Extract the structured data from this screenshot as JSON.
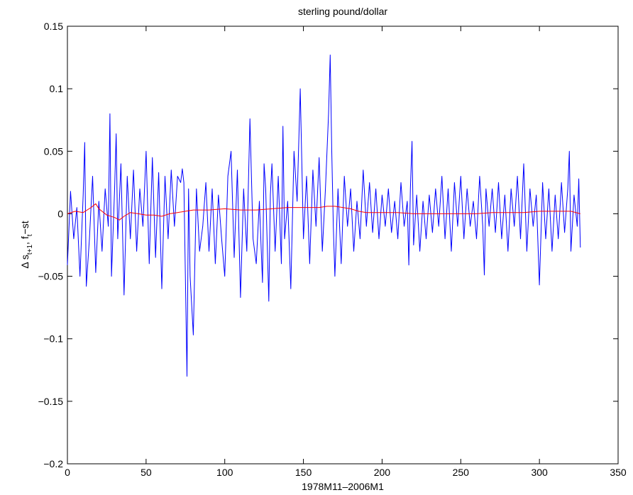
{
  "chart_data": {
    "type": "line",
    "title": "sterling pound/dollar",
    "xlabel": "1978M11–2006M1",
    "ylabel_parts": {
      "delta": "Δ s",
      "sub1": "t+1",
      "mid": ", f",
      "sub2": "t",
      "end": "−st"
    },
    "xlim": [
      0,
      350
    ],
    "ylim": [
      -0.2,
      0.15
    ],
    "x_ticks": [
      0,
      50,
      100,
      150,
      200,
      250,
      300,
      350
    ],
    "x_tick_labels": [
      "0",
      "50",
      "100",
      "150",
      "200",
      "250",
      "300",
      "350"
    ],
    "y_ticks": [
      -0.2,
      -0.15,
      -0.1,
      -0.05,
      0,
      0.05,
      0.1,
      0.15
    ],
    "y_tick_labels": [
      "−0.2",
      "−0.15",
      "−0.1",
      "−0.05",
      "0",
      "0.05",
      "0.1",
      "0.15"
    ],
    "grid": false,
    "series": [
      {
        "color": "#0000ff",
        "points": [
          [
            0,
            -0.041
          ],
          [
            2,
            0.018
          ],
          [
            4,
            -0.02
          ],
          [
            6,
            0.005
          ],
          [
            8,
            -0.05
          ],
          [
            10,
            0.015
          ],
          [
            11,
            0.057
          ],
          [
            12,
            -0.058
          ],
          [
            14,
            -0.02
          ],
          [
            16,
            0.03
          ],
          [
            18,
            -0.047
          ],
          [
            20,
            0.01
          ],
          [
            22,
            -0.03
          ],
          [
            24,
            0.02
          ],
          [
            26,
            -0.01
          ],
          [
            27,
            0.08
          ],
          [
            28,
            -0.05
          ],
          [
            30,
            0.02
          ],
          [
            31,
            0.064
          ],
          [
            32,
            -0.02
          ],
          [
            34,
            0.04
          ],
          [
            36,
            -0.065
          ],
          [
            38,
            0.03
          ],
          [
            40,
            -0.02
          ],
          [
            42,
            0.035
          ],
          [
            44,
            -0.03
          ],
          [
            46,
            0.02
          ],
          [
            48,
            -0.01
          ],
          [
            50,
            0.05
          ],
          [
            52,
            -0.04
          ],
          [
            54,
            0.045
          ],
          [
            56,
            -0.035
          ],
          [
            58,
            0.033
          ],
          [
            60,
            -0.06
          ],
          [
            62,
            0.03
          ],
          [
            64,
            -0.02
          ],
          [
            66,
            0.035
          ],
          [
            68,
            -0.01
          ],
          [
            70,
            0.03
          ],
          [
            72,
            0.025
          ],
          [
            73,
            0.036
          ],
          [
            74,
            0.025
          ],
          [
            76,
            -0.13
          ],
          [
            77,
            0.02
          ],
          [
            78,
            -0.05
          ],
          [
            80,
            -0.097
          ],
          [
            82,
            0.02
          ],
          [
            84,
            -0.03
          ],
          [
            86,
            -0.01
          ],
          [
            88,
            0.025
          ],
          [
            90,
            -0.03
          ],
          [
            92,
            0.02
          ],
          [
            94,
            -0.04
          ],
          [
            96,
            0.015
          ],
          [
            98,
            -0.02
          ],
          [
            100,
            -0.05
          ],
          [
            102,
            0.03
          ],
          [
            104,
            0.05
          ],
          [
            106,
            -0.035
          ],
          [
            108,
            0.035
          ],
          [
            110,
            -0.067
          ],
          [
            112,
            0.02
          ],
          [
            114,
            -0.03
          ],
          [
            116,
            0.076
          ],
          [
            118,
            -0.02
          ],
          [
            120,
            -0.04
          ],
          [
            122,
            0.01
          ],
          [
            124,
            -0.055
          ],
          [
            125,
            0.04
          ],
          [
            126,
            0.02
          ],
          [
            128,
            -0.07
          ],
          [
            129,
            0.015
          ],
          [
            130,
            0.04
          ],
          [
            132,
            -0.03
          ],
          [
            134,
            0.03
          ],
          [
            136,
            -0.04
          ],
          [
            137,
            0.07
          ],
          [
            138,
            -0.02
          ],
          [
            140,
            0.01
          ],
          [
            142,
            -0.06
          ],
          [
            144,
            0.05
          ],
          [
            146,
            0.01
          ],
          [
            148,
            0.1
          ],
          [
            150,
            -0.02
          ],
          [
            152,
            0.03
          ],
          [
            154,
            -0.04
          ],
          [
            156,
            0.035
          ],
          [
            158,
            -0.01
          ],
          [
            160,
            0.045
          ],
          [
            162,
            -0.03
          ],
          [
            164,
            0.02
          ],
          [
            166,
            0.08
          ],
          [
            167,
            0.127
          ],
          [
            168,
            0.05
          ],
          [
            169,
            -0.01
          ],
          [
            170,
            -0.05
          ],
          [
            172,
            0.02
          ],
          [
            174,
            -0.04
          ],
          [
            176,
            0.03
          ],
          [
            178,
            -0.01
          ],
          [
            180,
            0.02
          ],
          [
            182,
            -0.03
          ],
          [
            184,
            0.01
          ],
          [
            186,
            -0.02
          ],
          [
            188,
            0.035
          ],
          [
            190,
            -0.01
          ],
          [
            192,
            0.025
          ],
          [
            194,
            -0.015
          ],
          [
            196,
            0.02
          ],
          [
            198,
            -0.02
          ],
          [
            200,
            0.015
          ],
          [
            202,
            -0.01
          ],
          [
            204,
            0.02
          ],
          [
            206,
            -0.015
          ],
          [
            208,
            0.01
          ],
          [
            210,
            -0.02
          ],
          [
            212,
            0.025
          ],
          [
            214,
            -0.01
          ],
          [
            216,
            0.01
          ],
          [
            217,
            -0.041
          ],
          [
            218,
            0.02
          ],
          [
            219,
            0.058
          ],
          [
            220,
            -0.025
          ],
          [
            222,
            0.015
          ],
          [
            224,
            -0.03
          ],
          [
            226,
            0.01
          ],
          [
            228,
            -0.02
          ],
          [
            230,
            0.015
          ],
          [
            232,
            -0.015
          ],
          [
            234,
            0.02
          ],
          [
            236,
            -0.01
          ],
          [
            238,
            0.03
          ],
          [
            240,
            -0.02
          ],
          [
            242,
            0.02
          ],
          [
            244,
            -0.03
          ],
          [
            246,
            0.025
          ],
          [
            248,
            -0.01
          ],
          [
            250,
            0.03
          ],
          [
            252,
            -0.02
          ],
          [
            254,
            0.02
          ],
          [
            256,
            -0.01
          ],
          [
            258,
            0.01
          ],
          [
            260,
            -0.02
          ],
          [
            262,
            0.03
          ],
          [
            264,
            -0.01
          ],
          [
            265,
            -0.049
          ],
          [
            266,
            0.02
          ],
          [
            268,
            -0.01
          ],
          [
            270,
            0.02
          ],
          [
            272,
            -0.015
          ],
          [
            274,
            0.025
          ],
          [
            276,
            -0.02
          ],
          [
            278,
            0.015
          ],
          [
            280,
            -0.03
          ],
          [
            282,
            0.02
          ],
          [
            284,
            -0.01
          ],
          [
            286,
            0.03
          ],
          [
            288,
            -0.02
          ],
          [
            290,
            0.04
          ],
          [
            292,
            -0.03
          ],
          [
            294,
            0.02
          ],
          [
            296,
            -0.01
          ],
          [
            298,
            0.015
          ],
          [
            300,
            -0.057
          ],
          [
            302,
            0.025
          ],
          [
            304,
            -0.02
          ],
          [
            306,
            0.02
          ],
          [
            308,
            -0.03
          ],
          [
            310,
            0.015
          ],
          [
            312,
            -0.02
          ],
          [
            314,
            0.025
          ],
          [
            316,
            -0.015
          ],
          [
            318,
            0.02
          ],
          [
            319,
            0.05
          ],
          [
            320,
            -0.03
          ],
          [
            322,
            0.015
          ],
          [
            324,
            -0.01
          ],
          [
            325,
            0.028
          ],
          [
            326,
            -0.027
          ]
        ]
      },
      {
        "color": "#ff0000",
        "points": [
          [
            0,
            0.0
          ],
          [
            5,
            0.002
          ],
          [
            10,
            0.001
          ],
          [
            15,
            0.005
          ],
          [
            18,
            0.008
          ],
          [
            20,
            0.004
          ],
          [
            25,
            -0.001
          ],
          [
            30,
            -0.003
          ],
          [
            33,
            -0.005
          ],
          [
            36,
            -0.002
          ],
          [
            40,
            0.001
          ],
          [
            45,
            0.0
          ],
          [
            50,
            -0.001
          ],
          [
            55,
            -0.001
          ],
          [
            60,
            -0.002
          ],
          [
            65,
            0.0
          ],
          [
            70,
            0.001
          ],
          [
            75,
            0.002
          ],
          [
            80,
            0.003
          ],
          [
            90,
            0.003
          ],
          [
            100,
            0.004
          ],
          [
            110,
            0.003
          ],
          [
            120,
            0.003
          ],
          [
            130,
            0.004
          ],
          [
            140,
            0.005
          ],
          [
            150,
            0.005
          ],
          [
            160,
            0.005
          ],
          [
            165,
            0.006
          ],
          [
            170,
            0.006
          ],
          [
            175,
            0.005
          ],
          [
            180,
            0.004
          ],
          [
            185,
            0.002
          ],
          [
            190,
            0.001
          ],
          [
            195,
            0.001
          ],
          [
            200,
            0.001
          ],
          [
            210,
            0.001
          ],
          [
            220,
            0.0
          ],
          [
            230,
            0.0
          ],
          [
            240,
            0.0
          ],
          [
            250,
            0.0
          ],
          [
            260,
            0.0
          ],
          [
            270,
            0.001
          ],
          [
            280,
            0.001
          ],
          [
            290,
            0.001
          ],
          [
            300,
            0.002
          ],
          [
            310,
            0.002
          ],
          [
            320,
            0.002
          ],
          [
            326,
            0.0
          ]
        ]
      }
    ]
  }
}
